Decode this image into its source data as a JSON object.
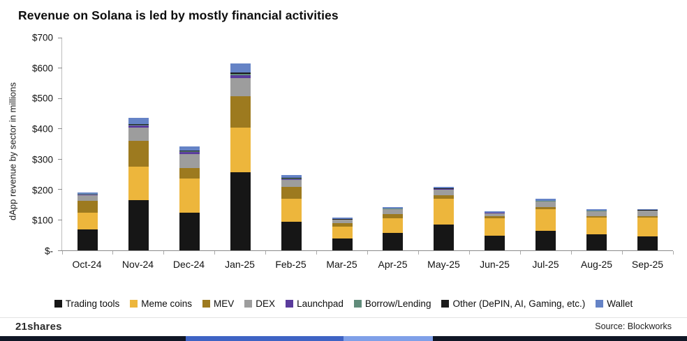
{
  "chart_data": {
    "type": "bar",
    "variant": "stacked",
    "title": "Revenue on Solana is led by mostly financial activities",
    "ylabel": "dApp revenue by sector in millions",
    "xlabel": "",
    "ylim": [
      0,
      700
    ],
    "y_ticks": [
      "$700",
      "$600",
      "$500",
      "$400",
      "$300",
      "$200",
      "$100",
      "$-"
    ],
    "categories": [
      "Oct-24",
      "Nov-24",
      "Dec-24",
      "Jan-25",
      "Feb-25",
      "Mar-25",
      "Apr-25",
      "May-25",
      "Jun-25",
      "Jul-25",
      "Aug-25",
      "Sep-25"
    ],
    "legend_position": "bottom",
    "grid": false,
    "series": [
      {
        "name": "Trading tools",
        "color": "#161616",
        "values": [
          70,
          165,
          125,
          258,
          95,
          38,
          57,
          85,
          48,
          65,
          52,
          46
        ]
      },
      {
        "name": "Meme coins",
        "color": "#EDB63C",
        "values": [
          55,
          110,
          112,
          145,
          75,
          40,
          48,
          85,
          57,
          70,
          55,
          62
        ]
      },
      {
        "name": "MEV",
        "color": "#9D7A1F",
        "values": [
          38,
          85,
          35,
          105,
          40,
          12,
          15,
          12,
          7,
          8,
          6,
          5
        ]
      },
      {
        "name": "DEX",
        "color": "#9D9D9D",
        "values": [
          18,
          45,
          45,
          60,
          22,
          10,
          15,
          18,
          10,
          17,
          15,
          17
        ]
      },
      {
        "name": "Launchpad",
        "color": "#5A3B9C",
        "values": [
          2,
          5,
          6,
          8,
          2,
          1,
          1,
          2,
          1,
          1,
          1,
          1
        ]
      },
      {
        "name": "Borrow/Lending",
        "color": "#618C7B",
        "values": [
          2,
          3,
          3,
          5,
          2,
          1,
          1,
          1,
          1,
          1,
          1,
          1
        ]
      },
      {
        "name": "Other (DePIN, AI, Gaming, etc.)",
        "color": "#1B1B1B",
        "values": [
          2,
          3,
          3,
          5,
          2,
          1,
          1,
          1,
          1,
          1,
          1,
          1
        ]
      },
      {
        "name": "Wallet",
        "color": "#6583C6",
        "values": [
          3,
          20,
          14,
          30,
          10,
          4,
          5,
          5,
          4,
          6,
          4,
          3
        ]
      }
    ]
  },
  "footer": {
    "brand": "21shares",
    "source": "Source: Blockworks"
  },
  "accent_strip": {
    "segments": [
      {
        "color": "#101726",
        "width_pct": 27
      },
      {
        "color": "#3E63C4",
        "width_pct": 23
      },
      {
        "color": "#7FA0E8",
        "width_pct": 13
      },
      {
        "color": "#101726",
        "width_pct": 37
      }
    ]
  }
}
